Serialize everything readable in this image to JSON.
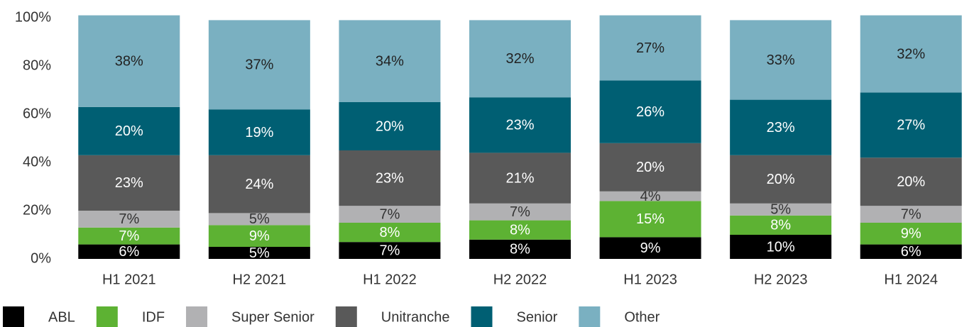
{
  "chart_data": {
    "type": "stacked_bar",
    "categories": [
      "H1 2021",
      "H2 2021",
      "H1 2022",
      "H2 2022",
      "H1 2023",
      "H2 2023",
      "H1 2024"
    ],
    "series": [
      {
        "name": "ABL",
        "color": "#000000",
        "values": [
          6,
          5,
          7,
          8,
          9,
          10,
          6
        ],
        "value_labels": [
          "6%",
          "5%",
          "7%",
          "8%",
          "9%",
          "10%",
          "6%"
        ]
      },
      {
        "name": "IDF",
        "color": "#5db233",
        "values": [
          7,
          9,
          8,
          8,
          15,
          8,
          9
        ],
        "value_labels": [
          "7%",
          "9%",
          "8%",
          "8%",
          "15%",
          "8%",
          "9%"
        ]
      },
      {
        "name": "Super Senior",
        "color": "#b1b1b3",
        "values": [
          7,
          5,
          7,
          7,
          4,
          5,
          7
        ],
        "value_labels": [
          "7%",
          "5%",
          "7%",
          "7%",
          "4%",
          "5%",
          "7%"
        ]
      },
      {
        "name": "Unitranche",
        "color": "#595959",
        "values": [
          23,
          24,
          23,
          21,
          20,
          20,
          20
        ],
        "value_labels": [
          "23%",
          "24%",
          "23%",
          "21%",
          "20%",
          "20%",
          "20%"
        ]
      },
      {
        "name": "Senior",
        "color": "#005f73",
        "values": [
          20,
          19,
          20,
          23,
          26,
          23,
          27
        ],
        "value_labels": [
          "20%",
          "19%",
          "20%",
          "23%",
          "26%",
          "23%",
          "27%"
        ]
      },
      {
        "name": "Other",
        "color": "#7ab0c1",
        "values": [
          38,
          37,
          34,
          32,
          27,
          33,
          32
        ],
        "value_labels": [
          "38%",
          "37%",
          "34%",
          "32%",
          "27%",
          "33%",
          "32%"
        ]
      }
    ],
    "ylim": [
      0,
      100
    ],
    "yticks": [
      {
        "value": 0,
        "label": "0%"
      },
      {
        "value": 20,
        "label": "20%"
      },
      {
        "value": 40,
        "label": "40%"
      },
      {
        "value": 60,
        "label": "60%"
      },
      {
        "value": 80,
        "label": "80%"
      },
      {
        "value": 100,
        "label": "100%"
      }
    ],
    "legend": "bottom-left"
  }
}
